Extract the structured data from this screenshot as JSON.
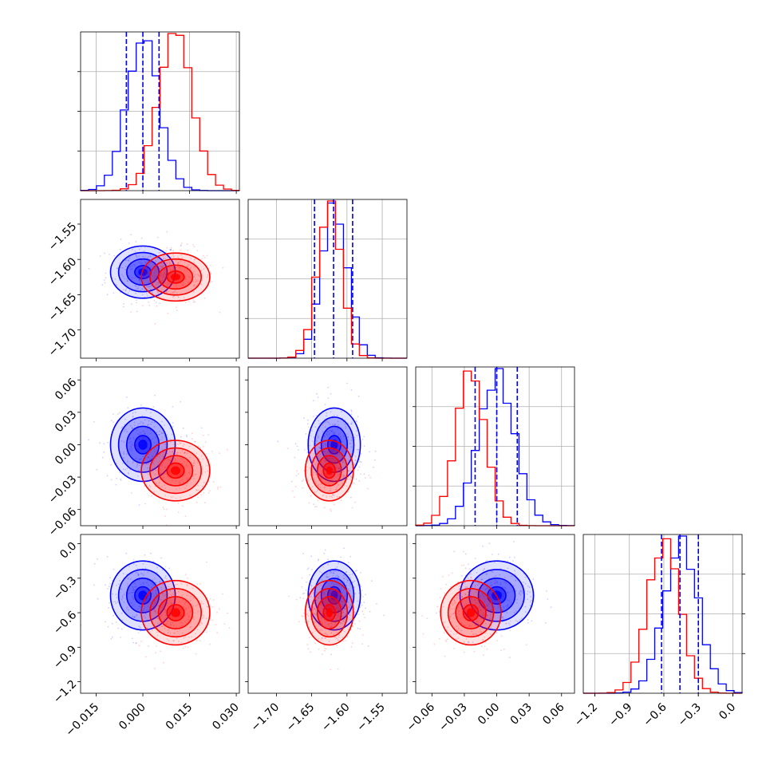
{
  "chart_data": {
    "type": "corner",
    "parameters": [
      {
        "index": 0,
        "range": [
          -0.02,
          0.031
        ],
        "ticks": [
          -0.015,
          0.0,
          0.015,
          0.03
        ],
        "tick_labels": [
          "−0.015",
          "0.000",
          "0.015",
          "0.030"
        ]
      },
      {
        "index": 1,
        "range": [
          -1.74,
          -1.515
        ],
        "ticks": [
          -1.7,
          -1.65,
          -1.6,
          -1.55
        ],
        "tick_labels": [
          "−1.70",
          "−1.65",
          "−1.60",
          "−1.55"
        ]
      },
      {
        "index": 2,
        "range": [
          -0.075,
          0.072
        ],
        "ticks": [
          -0.06,
          -0.03,
          0.0,
          0.03,
          0.06
        ],
        "tick_labels": [
          "−0.06",
          "−0.03",
          "0.00",
          "0.03",
          "0.06"
        ]
      },
      {
        "index": 3,
        "range": [
          -1.3,
          0.08
        ],
        "ticks": [
          -1.2,
          -0.9,
          -0.6,
          -0.3,
          0.0
        ],
        "tick_labels": [
          "−1.2",
          "−0.9",
          "−0.6",
          "−0.3",
          "0.0"
        ]
      }
    ],
    "series": [
      {
        "color": "#0000ff",
        "means": [
          0.0,
          -1.618,
          0.0,
          -0.45
        ],
        "sigmas": [
          0.0052,
          0.0185,
          0.017,
          0.15
        ]
      },
      {
        "color": "#ff0000",
        "means": [
          0.0105,
          -1.625,
          -0.024,
          -0.6
        ],
        "sigmas": [
          0.0055,
          0.017,
          0.014,
          0.14
        ]
      }
    ],
    "quantiles": {
      "color": "#0000ff",
      "values": [
        [
          -0.0053,
          0.0,
          0.0052
        ],
        [
          -1.646,
          -1.619,
          -1.592
        ],
        [
          -0.02,
          0.0,
          0.019
        ],
        [
          -0.62,
          -0.46,
          -0.3
        ]
      ]
    },
    "histogram_x_ticks_visible": false,
    "grid": true
  }
}
